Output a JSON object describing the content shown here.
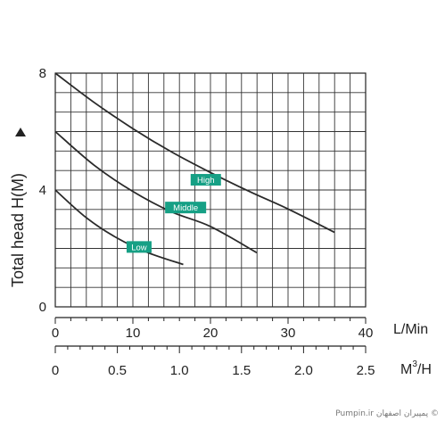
{
  "chart_data": {
    "type": "line",
    "ylabel": "Total head H(M)",
    "ylim": [
      0,
      8
    ],
    "yticks": [
      "0",
      "4",
      "8"
    ],
    "x": {
      "lim": [
        0,
        40
      ],
      "ticks": [
        "0",
        "10",
        "20",
        "30",
        "40"
      ],
      "unit": "L/Min"
    },
    "x2": {
      "lim": [
        0,
        2.5
      ],
      "ticks": [
        "0",
        "0.5",
        "1.0",
        "1.5",
        "2.0",
        "2.5"
      ],
      "unit_base": "M",
      "unit_sup": "3",
      "unit_tail": "/H"
    },
    "grid": true,
    "series": [
      {
        "name": "High",
        "color": "#2a2a2a",
        "points": [
          [
            0,
            8.0
          ],
          [
            5,
            7.0
          ],
          [
            10,
            6.1
          ],
          [
            15,
            5.3
          ],
          [
            20,
            4.6
          ],
          [
            25,
            3.95
          ],
          [
            30,
            3.35
          ],
          [
            36,
            2.55
          ]
        ],
        "label_at": [
          19.4,
          4.35
        ]
      },
      {
        "name": "Middle",
        "color": "#2a2a2a",
        "points": [
          [
            0,
            6.0
          ],
          [
            5,
            4.85
          ],
          [
            10,
            3.95
          ],
          [
            15,
            3.25
          ],
          [
            20,
            2.75
          ],
          [
            26,
            1.85
          ]
        ],
        "label_at": [
          16.8,
          3.4
        ]
      },
      {
        "name": "Low",
        "color": "#2a2a2a",
        "points": [
          [
            0,
            4.0
          ],
          [
            4,
            3.05
          ],
          [
            8,
            2.35
          ],
          [
            12,
            1.85
          ],
          [
            16.5,
            1.45
          ]
        ],
        "label_at": [
          10.8,
          2.05
        ]
      }
    ],
    "label_color": "#16a085"
  },
  "watermark": "Pumpin.ir پمپیران اصفهان ©"
}
